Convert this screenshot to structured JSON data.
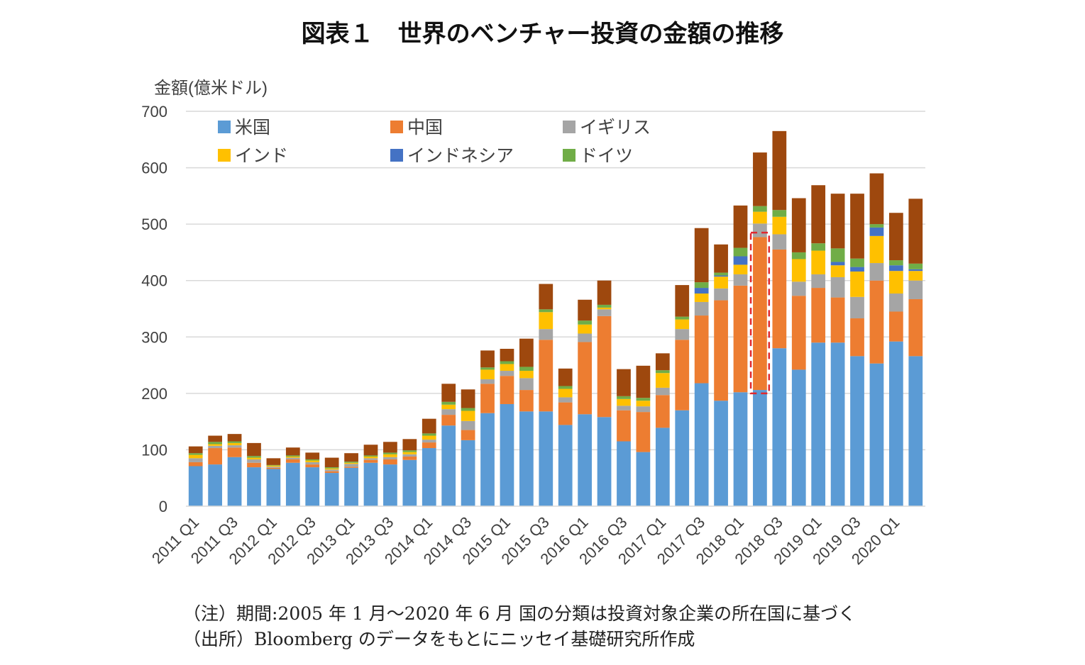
{
  "title": "図表１　世界のベンチャー投資の金額の推移",
  "notes": {
    "period": "（注）期間:2005 年 1 月～2020 年 6 月 国の分類は投資対象企業の所在国に基づく",
    "source": "（出所）Bloomberg のデータをもとにニッセイ基礎研究所作成"
  },
  "chart_data": {
    "type": "bar",
    "stacked": true,
    "title": "",
    "ylabel": "金額(億米ドル)",
    "xlabel": "",
    "ylim": [
      0,
      700
    ],
    "yticks": [
      0,
      100,
      200,
      300,
      400,
      500,
      600,
      700
    ],
    "grid": true,
    "legend_position": "top",
    "categories": [
      "2011 Q1",
      "2011 Q2",
      "2011 Q3",
      "2011 Q4",
      "2012 Q1",
      "2012 Q2",
      "2012 Q3",
      "2012 Q4",
      "2013 Q1",
      "2013 Q2",
      "2013 Q3",
      "2013 Q4",
      "2014 Q1",
      "2014 Q2",
      "2014 Q3",
      "2014 Q4",
      "2015 Q1",
      "2015 Q2",
      "2015 Q3",
      "2015 Q4",
      "2016 Q1",
      "2016 Q2",
      "2016 Q3",
      "2016 Q4",
      "2017 Q1",
      "2017 Q2",
      "2017 Q3",
      "2017 Q4",
      "2018 Q1",
      "2018 Q2",
      "2018 Q3",
      "2018 Q4",
      "2019 Q1",
      "2019 Q2",
      "2019 Q3",
      "2019 Q4",
      "2020 Q1",
      "2020 Q2"
    ],
    "tick_labels": [
      "2011 Q1",
      "",
      "2011 Q3",
      "",
      "2012 Q1",
      "",
      "2012 Q3",
      "",
      "2013 Q1",
      "",
      "2013 Q3",
      "",
      "2014 Q1",
      "",
      "2014 Q3",
      "",
      "2015 Q1",
      "",
      "2015 Q3",
      "",
      "2016 Q1",
      "",
      "2016 Q3",
      "",
      "2017 Q1",
      "",
      "2017 Q3",
      "",
      "2018 Q1",
      "",
      "2018 Q3",
      "",
      "2019 Q1",
      "",
      "2019 Q3",
      "",
      "2020 Q1",
      ""
    ],
    "series": [
      {
        "name": "米国",
        "color": "#5b9bd5",
        "values": [
          71,
          74,
          87,
          69,
          66,
          77,
          69,
          59,
          68,
          77,
          74,
          82,
          103,
          143,
          117,
          165,
          181,
          168,
          168,
          144,
          163,
          158,
          115,
          96,
          139,
          170,
          218,
          187,
          202,
          206,
          280,
          242,
          290,
          290,
          266,
          253,
          292,
          266
        ]
      },
      {
        "name": "中国",
        "color": "#ed7d31",
        "values": [
          7,
          29,
          17,
          8,
          2,
          6,
          5,
          3,
          2,
          5,
          9,
          6,
          10,
          19,
          18,
          52,
          50,
          38,
          127,
          40,
          128,
          179,
          55,
          71,
          58,
          125,
          120,
          178,
          189,
          271,
          175,
          131,
          97,
          80,
          67,
          147,
          53,
          101
        ]
      },
      {
        "name": "イギリス",
        "color": "#a5a5a5",
        "values": [
          7,
          4,
          4,
          6,
          2,
          3,
          4,
          3,
          5,
          3,
          4,
          4,
          5,
          10,
          16,
          8,
          9,
          21,
          19,
          9,
          15,
          12,
          8,
          10,
          13,
          19,
          24,
          21,
          20,
          24,
          27,
          25,
          24,
          36,
          38,
          31,
          32,
          33
        ]
      },
      {
        "name": "インド",
        "color": "#ffc000",
        "values": [
          6,
          3,
          4,
          3,
          2,
          2,
          3,
          2,
          2,
          3,
          5,
          4,
          7,
          8,
          18,
          17,
          12,
          13,
          30,
          15,
          16,
          3,
          12,
          10,
          26,
          17,
          15,
          21,
          17,
          21,
          31,
          40,
          42,
          21,
          45,
          48,
          40,
          17
        ]
      },
      {
        "name": "インドネシア",
        "color": "#4472c4",
        "values": [
          0,
          0,
          0,
          0,
          0,
          0,
          0,
          0,
          0,
          0,
          0,
          0,
          0,
          0,
          0,
          0,
          0,
          0,
          0,
          0,
          0,
          0,
          0,
          0,
          0,
          0,
          10,
          2,
          15,
          0,
          0,
          0,
          0,
          6,
          8,
          15,
          10,
          3
        ]
      },
      {
        "name": "ドイツ",
        "color": "#70ad47",
        "values": [
          3,
          4,
          3,
          3,
          1,
          2,
          2,
          2,
          2,
          2,
          3,
          3,
          4,
          5,
          5,
          4,
          5,
          7,
          5,
          5,
          7,
          5,
          5,
          5,
          5,
          5,
          10,
          5,
          15,
          10,
          12,
          12,
          13,
          24,
          15,
          6,
          9,
          10
        ]
      },
      {
        "name": "",
        "color": "#9e480e",
        "values": [
          12,
          11,
          13,
          23,
          12,
          14,
          12,
          17,
          15,
          19,
          19,
          20,
          26,
          32,
          33,
          30,
          22,
          50,
          45,
          31,
          37,
          43,
          48,
          57,
          30,
          56,
          96,
          50,
          75,
          95,
          140,
          96,
          103,
          97,
          115,
          90,
          84,
          115
        ]
      }
    ]
  },
  "highlight_box": {
    "category": "2018 Q2",
    "from": 200,
    "to": 485,
    "color": "#e0282e"
  }
}
